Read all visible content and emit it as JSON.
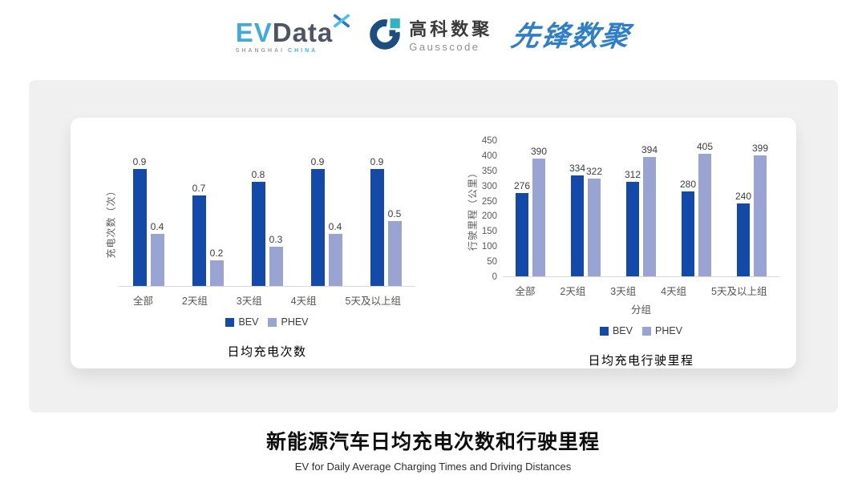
{
  "header": {
    "evdata": {
      "ev": "EV",
      "data": "Data",
      "sub_left": "SHANGHAI",
      "sub_right": "CHINA"
    },
    "gausscode": {
      "cn": "高科数聚",
      "en": "Gausscode"
    },
    "xianfeng": "先锋数聚"
  },
  "footer": {
    "title": "新能源汽车日均充电次数和行驶里程",
    "subtitle": "EV for Daily Average Charging Times and Driving Distances"
  },
  "colors": {
    "bev": "#1349A8",
    "phev": "#99A4D2",
    "panel_bg": "#F0F0F0",
    "axis_line": "#D9D9D9",
    "axis_text": "#595959"
  },
  "chart_data": [
    {
      "type": "bar",
      "title": "日均充电次数",
      "ylabel": "充电次数（次）",
      "xlabel": "",
      "categories": [
        "全部",
        "2天组",
        "3天组",
        "4天组",
        "5天及以上组"
      ],
      "series": [
        {
          "name": "BEV",
          "color": "#1349A8",
          "values": [
            0.9,
            0.7,
            0.8,
            0.9,
            0.9
          ]
        },
        {
          "name": "PHEV",
          "color": "#99A4D2",
          "values": [
            0.4,
            0.2,
            0.3,
            0.4,
            0.5
          ]
        }
      ],
      "ylim": [
        0,
        1
      ],
      "ytick_step": 0,
      "yticks_visible": false,
      "grid": false,
      "legend_position": "bottom"
    },
    {
      "type": "bar",
      "title": "日均充电行驶里程",
      "ylabel": "行驶里程（公里）",
      "xlabel": "分组",
      "categories": [
        "全部",
        "2天组",
        "3天组",
        "4天组",
        "5天及以上组"
      ],
      "series": [
        {
          "name": "BEV",
          "color": "#1349A8",
          "values": [
            276,
            334,
            312,
            280,
            240
          ]
        },
        {
          "name": "PHEV",
          "color": "#99A4D2",
          "values": [
            390,
            322,
            394,
            405,
            399
          ]
        }
      ],
      "ylim": [
        0,
        450
      ],
      "ytick_step": 50,
      "yticks_visible": true,
      "grid": false,
      "legend_position": "bottom"
    }
  ]
}
